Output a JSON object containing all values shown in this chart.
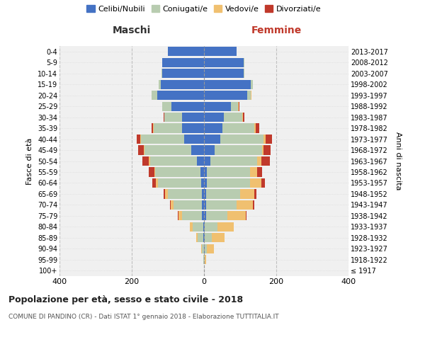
{
  "age_groups": [
    "100+",
    "95-99",
    "90-94",
    "85-89",
    "80-84",
    "75-79",
    "70-74",
    "65-69",
    "60-64",
    "55-59",
    "50-54",
    "45-49",
    "40-44",
    "35-39",
    "30-34",
    "25-29",
    "20-24",
    "15-19",
    "10-14",
    "5-9",
    "0-4"
  ],
  "birth_years": [
    "≤ 1917",
    "1918-1922",
    "1923-1927",
    "1928-1932",
    "1933-1937",
    "1938-1942",
    "1943-1947",
    "1948-1952",
    "1953-1957",
    "1958-1962",
    "1963-1967",
    "1968-1972",
    "1973-1977",
    "1978-1982",
    "1983-1987",
    "1988-1992",
    "1993-1997",
    "1998-2002",
    "2003-2007",
    "2008-2012",
    "2013-2017"
  ],
  "male": {
    "celibi": [
      0,
      0,
      0,
      2,
      2,
      5,
      5,
      5,
      8,
      10,
      20,
      35,
      55,
      60,
      60,
      90,
      130,
      120,
      115,
      115,
      100
    ],
    "coniugati": [
      0,
      1,
      5,
      15,
      30,
      55,
      80,
      95,
      120,
      125,
      130,
      130,
      120,
      80,
      50,
      25,
      15,
      5,
      2,
      1,
      0
    ],
    "vedovi": [
      0,
      1,
      3,
      5,
      8,
      10,
      8,
      8,
      5,
      3,
      2,
      2,
      2,
      1,
      0,
      0,
      0,
      0,
      0,
      0,
      0
    ],
    "divorziati": [
      0,
      0,
      0,
      0,
      0,
      2,
      2,
      3,
      10,
      15,
      18,
      15,
      10,
      5,
      2,
      1,
      0,
      0,
      0,
      0,
      0
    ]
  },
  "female": {
    "nubili": [
      0,
      0,
      2,
      2,
      2,
      5,
      5,
      5,
      8,
      8,
      18,
      30,
      45,
      50,
      55,
      75,
      120,
      130,
      110,
      110,
      90
    ],
    "coniugate": [
      0,
      1,
      5,
      20,
      35,
      60,
      85,
      95,
      120,
      120,
      130,
      130,
      120,
      90,
      50,
      20,
      10,
      5,
      2,
      1,
      0
    ],
    "vedove": [
      0,
      5,
      20,
      35,
      45,
      50,
      45,
      40,
      30,
      20,
      10,
      5,
      5,
      3,
      2,
      1,
      1,
      0,
      0,
      0,
      0
    ],
    "divorziate": [
      0,
      0,
      0,
      0,
      0,
      2,
      4,
      5,
      10,
      12,
      25,
      20,
      18,
      10,
      4,
      2,
      1,
      0,
      0,
      0,
      0
    ]
  },
  "colors": {
    "celibi": "#4472C4",
    "coniugati": "#B8CCB0",
    "vedovi": "#F0C070",
    "divorziati": "#C0392B"
  },
  "legend_labels": [
    "Celibi/Nubili",
    "Coniugati/e",
    "Vedovi/e",
    "Divorziati/e"
  ],
  "title": "Popolazione per età, sesso e stato civile - 2018",
  "subtitle": "COMUNE DI PANDINO (CR) - Dati ISTAT 1° gennaio 2018 - Elaborazione TUTTITALIA.IT",
  "xlabel_left": "Maschi",
  "xlabel_right": "Femmine",
  "ylabel_left": "Fasce di età",
  "ylabel_right": "Anni di nascita",
  "xlim": 400,
  "bg_color": "#ffffff",
  "plot_bg": "#f0f0f0",
  "grid_color": "#cccccc"
}
